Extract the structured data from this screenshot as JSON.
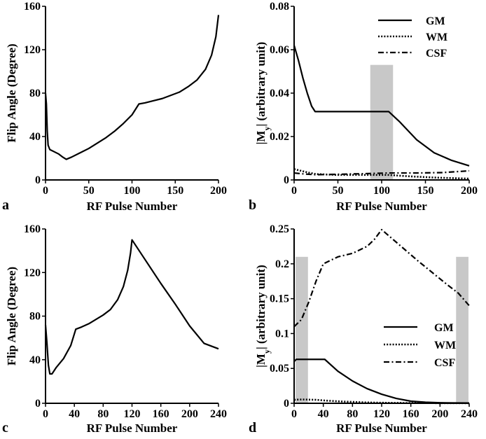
{
  "chart_data": [
    {
      "id": "a",
      "panel_label": "a",
      "type": "line",
      "xlabel": "RF Pulse Number",
      "ylabel": "Flip Angle (Degree)",
      "xlim": [
        0,
        200
      ],
      "ylim": [
        0,
        160
      ],
      "xticks": [
        0,
        50,
        100,
        150,
        200
      ],
      "yticks": [
        0,
        40,
        80,
        120,
        160
      ],
      "shaded": [],
      "legend": null,
      "series": [
        {
          "name": "Flip Angle",
          "style": "solid",
          "points": [
            [
              0,
              80
            ],
            [
              1,
              70
            ],
            [
              2,
              45
            ],
            [
              3,
              32
            ],
            [
              5,
              28
            ],
            [
              10,
              26
            ],
            [
              15,
              24
            ],
            [
              20,
              21
            ],
            [
              24,
              19
            ],
            [
              30,
              21
            ],
            [
              40,
              25
            ],
            [
              50,
              29
            ],
            [
              60,
              34
            ],
            [
              70,
              39
            ],
            [
              80,
              45
            ],
            [
              90,
              52
            ],
            [
              100,
              60
            ],
            [
              108,
              70
            ],
            [
              115,
              71
            ],
            [
              125,
              73
            ],
            [
              135,
              75
            ],
            [
              145,
              78
            ],
            [
              155,
              81
            ],
            [
              165,
              86
            ],
            [
              175,
              92
            ],
            [
              185,
              102
            ],
            [
              192,
              115
            ],
            [
              197,
              132
            ],
            [
              200,
              152
            ]
          ]
        }
      ]
    },
    {
      "id": "b",
      "panel_label": "b",
      "type": "line",
      "xlabel": "RF Pulse Number",
      "ylabel": "|My| (arbitrary unit)",
      "xlim": [
        0,
        200
      ],
      "ylim": [
        0,
        0.08
      ],
      "xticks": [
        0,
        50,
        100,
        150,
        200
      ],
      "yticks": [
        0,
        0.02,
        0.04,
        0.06,
        0.08
      ],
      "shaded": [
        [
          87,
          113
        ]
      ],
      "legend": {
        "position": "top-right"
      },
      "series": [
        {
          "name": "GM",
          "style": "solid",
          "points": [
            [
              0,
              0.062
            ],
            [
              5,
              0.055
            ],
            [
              10,
              0.047
            ],
            [
              15,
              0.04
            ],
            [
              20,
              0.034
            ],
            [
              24,
              0.0315
            ],
            [
              50,
              0.0315
            ],
            [
              80,
              0.0315
            ],
            [
              108,
              0.0315
            ],
            [
              120,
              0.027
            ],
            [
              140,
              0.0185
            ],
            [
              160,
              0.0125
            ],
            [
              180,
              0.009
            ],
            [
              200,
              0.0065
            ]
          ]
        },
        {
          "name": "WM",
          "style": "dotted",
          "points": [
            [
              0,
              0.005
            ],
            [
              5,
              0.0045
            ],
            [
              15,
              0.0035
            ],
            [
              25,
              0.0027
            ],
            [
              50,
              0.0023
            ],
            [
              80,
              0.0023
            ],
            [
              108,
              0.0023
            ],
            [
              130,
              0.0017
            ],
            [
              160,
              0.0011
            ],
            [
              200,
              0.0006
            ]
          ]
        },
        {
          "name": "CSF",
          "style": "dashdot",
          "points": [
            [
              0,
              0.0032
            ],
            [
              10,
              0.0028
            ],
            [
              24,
              0.0024
            ],
            [
              50,
              0.0026
            ],
            [
              80,
              0.0029
            ],
            [
              108,
              0.0032
            ],
            [
              140,
              0.0032
            ],
            [
              170,
              0.0034
            ],
            [
              200,
              0.0042
            ]
          ]
        }
      ]
    },
    {
      "id": "c",
      "panel_label": "c",
      "type": "line",
      "xlabel": "RF Pulse Number",
      "ylabel": "Flip Angle (Degree)",
      "xlim": [
        0,
        240
      ],
      "ylim": [
        0,
        160
      ],
      "xticks": [
        0,
        40,
        80,
        120,
        160,
        200,
        240
      ],
      "yticks": [
        0,
        40,
        80,
        120,
        160
      ],
      "shaded": [],
      "legend": null,
      "series": [
        {
          "name": "Flip Angle",
          "style": "solid",
          "points": [
            [
              0,
              72
            ],
            [
              2,
              55
            ],
            [
              4,
              35
            ],
            [
              6,
              27
            ],
            [
              9,
              27
            ],
            [
              15,
              33
            ],
            [
              25,
              41
            ],
            [
              35,
              53
            ],
            [
              42,
              68
            ],
            [
              50,
              70
            ],
            [
              60,
              73
            ],
            [
              70,
              77
            ],
            [
              80,
              81
            ],
            [
              90,
              86
            ],
            [
              100,
              95
            ],
            [
              108,
              107
            ],
            [
              114,
              122
            ],
            [
              118,
              138
            ],
            [
              120,
              150
            ],
            [
              140,
              130
            ],
            [
              160,
              110
            ],
            [
              180,
              91
            ],
            [
              200,
              71
            ],
            [
              220,
              55
            ],
            [
              240,
              50
            ]
          ]
        }
      ]
    },
    {
      "id": "d",
      "panel_label": "d",
      "type": "line",
      "xlabel": "RF Pulse Number",
      "ylabel": "|My| (arbitrary unit)",
      "xlim": [
        0,
        240
      ],
      "ylim": [
        0,
        0.25
      ],
      "xticks": [
        0,
        40,
        80,
        120,
        160,
        200,
        240
      ],
      "yticks": [
        0,
        0.05,
        0.1,
        0.15,
        0.2,
        0.25
      ],
      "shaded": [
        [
          2,
          19
        ],
        [
          222,
          239
        ]
      ],
      "legend": {
        "position": "middle-right"
      },
      "series": [
        {
          "name": "GM",
          "style": "solid",
          "points": [
            [
              0,
              0.06
            ],
            [
              3,
              0.063
            ],
            [
              20,
              0.063
            ],
            [
              42,
              0.063
            ],
            [
              60,
              0.046
            ],
            [
              80,
              0.032
            ],
            [
              100,
              0.021
            ],
            [
              120,
              0.013
            ],
            [
              140,
              0.007
            ],
            [
              160,
              0.003
            ],
            [
              180,
              0.0015
            ],
            [
              200,
              0.0008
            ],
            [
              220,
              0.0005
            ],
            [
              240,
              0.0004
            ]
          ]
        },
        {
          "name": "WM",
          "style": "dotted",
          "points": [
            [
              0,
              0.005
            ],
            [
              10,
              0.0055
            ],
            [
              30,
              0.005
            ],
            [
              42,
              0.004
            ],
            [
              60,
              0.0028
            ],
            [
              80,
              0.002
            ],
            [
              100,
              0.0012
            ],
            [
              120,
              0.0008
            ],
            [
              160,
              0.0004
            ],
            [
              200,
              0.0002
            ],
            [
              240,
              0.0001
            ]
          ]
        },
        {
          "name": "CSF",
          "style": "dashdot",
          "points": [
            [
              0,
              0.11
            ],
            [
              10,
              0.12
            ],
            [
              20,
              0.145
            ],
            [
              30,
              0.175
            ],
            [
              40,
              0.2
            ],
            [
              60,
              0.21
            ],
            [
              80,
              0.215
            ],
            [
              100,
              0.225
            ],
            [
              110,
              0.235
            ],
            [
              120,
              0.249
            ],
            [
              130,
              0.24
            ],
            [
              150,
              0.222
            ],
            [
              170,
              0.204
            ],
            [
              190,
              0.187
            ],
            [
              210,
              0.17
            ],
            [
              225,
              0.158
            ],
            [
              240,
              0.14
            ]
          ]
        }
      ]
    }
  ]
}
